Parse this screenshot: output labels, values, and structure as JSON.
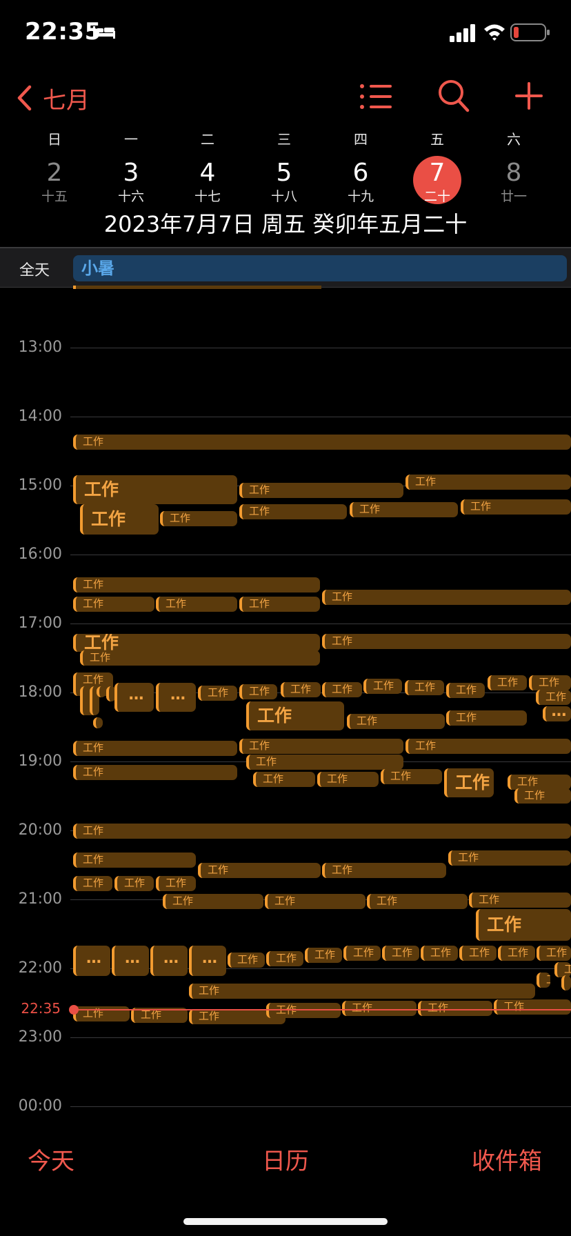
{
  "status_bar": {
    "time": "22:35",
    "battery_color": "#e5463c"
  },
  "nav": {
    "back_label": "七月",
    "accent": "#f0584d"
  },
  "week": {
    "days": [
      {
        "weekday": "日",
        "day": "2",
        "lunar": "十五",
        "state": "dim"
      },
      {
        "weekday": "一",
        "day": "3",
        "lunar": "十六",
        "state": "normal"
      },
      {
        "weekday": "二",
        "day": "4",
        "lunar": "十七",
        "state": "normal"
      },
      {
        "weekday": "三",
        "day": "5",
        "lunar": "十八",
        "state": "normal"
      },
      {
        "weekday": "四",
        "day": "6",
        "lunar": "十九",
        "state": "normal"
      },
      {
        "weekday": "五",
        "day": "7",
        "lunar": "二十",
        "state": "selected"
      },
      {
        "weekday": "六",
        "day": "8",
        "lunar": "廿一",
        "state": "dim"
      }
    ],
    "full_date": "2023年7月7日 周五   癸卯年五月二十"
  },
  "all_day": {
    "label": "全天",
    "event": "小暑"
  },
  "timeline": {
    "hours": [
      "13:00",
      "14:00",
      "15:00",
      "16:00",
      "17:00",
      "18:00",
      "19:00",
      "20:00",
      "21:00",
      "22:00",
      "23:00",
      "00:00"
    ],
    "now_label": "22:35",
    "event_title": "工作",
    "overflow_label": "…"
  },
  "tabs": {
    "today": "今天",
    "calendars": "日历",
    "inbox": "收件箱"
  },
  "colors": {
    "event_bg": "#5b3a0c",
    "event_bar": "#f29b30",
    "event_text": "#f3a444",
    "allday_bg": "#1b3f62",
    "allday_text": "#5aa8ea",
    "now": "#ea4f45"
  }
}
